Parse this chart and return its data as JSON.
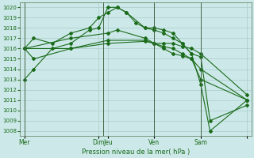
{
  "background_color": "#cce8e8",
  "grid_color": "#aacccc",
  "line_color": "#1a6b1a",
  "title": "Pression niveau de la mer( hPa )",
  "ylim": [
    1007.5,
    1020.5
  ],
  "yticks": [
    1008,
    1009,
    1010,
    1011,
    1012,
    1013,
    1014,
    1015,
    1016,
    1017,
    1018,
    1019,
    1020
  ],
  "x_tick_pos": [
    0,
    8,
    9,
    14,
    19,
    24
  ],
  "x_tick_labels": [
    "Mer",
    "Dim",
    "Jeu",
    "Ven",
    "Sam",
    ""
  ],
  "vline_pos": [
    0,
    8.5,
    14,
    19
  ],
  "series": [
    {
      "x": [
        0,
        1,
        3,
        5,
        7,
        8,
        9,
        10,
        11,
        12,
        13,
        14,
        15,
        16,
        17,
        18,
        19,
        20,
        24
      ],
      "y": [
        1013.0,
        1014.0,
        1016.0,
        1016.5,
        1017.8,
        1018.0,
        1020.0,
        1020.0,
        1019.5,
        1018.5,
        1018.0,
        1018.0,
        1017.8,
        1017.5,
        1016.5,
        1015.5,
        1012.5,
        1008.0,
        1011.0
      ],
      "markers": [
        0,
        1,
        3,
        5,
        7,
        8,
        9,
        10,
        11,
        12,
        13,
        14,
        15,
        16,
        17,
        18,
        19,
        20,
        24
      ]
    },
    {
      "x": [
        0,
        1,
        3,
        5,
        7,
        8,
        9,
        10,
        11,
        13,
        14,
        15,
        16,
        17,
        18,
        19,
        20,
        24
      ],
      "y": [
        1016.0,
        1017.0,
        1016.5,
        1017.5,
        1018.0,
        1019.0,
        1019.5,
        1020.0,
        1019.5,
        1018.0,
        1017.8,
        1017.5,
        1017.0,
        1016.5,
        1015.5,
        1015.2,
        1009.0,
        1010.5
      ],
      "markers": [
        0,
        1,
        3,
        5,
        7,
        8,
        9,
        10,
        11,
        13,
        14,
        15,
        16,
        17,
        18,
        19,
        20,
        24
      ]
    },
    {
      "x": [
        0,
        5,
        9,
        13,
        14,
        15,
        16,
        17,
        18,
        19,
        24
      ],
      "y": [
        1016.0,
        1016.0,
        1016.5,
        1016.7,
        1016.5,
        1016.5,
        1016.5,
        1016.2,
        1016.0,
        1015.5,
        1011.5
      ],
      "markers": [
        0,
        5,
        9,
        13,
        14,
        15,
        16,
        17,
        18,
        19,
        24
      ]
    },
    {
      "x": [
        0,
        5,
        9,
        10,
        13,
        14,
        15,
        16,
        17,
        18,
        19,
        24
      ],
      "y": [
        1016.0,
        1017.0,
        1017.5,
        1017.8,
        1017.0,
        1016.5,
        1016.0,
        1015.5,
        1015.3,
        1015.0,
        1014.0,
        1011.0
      ],
      "markers": [
        0,
        5,
        9,
        10,
        13,
        14,
        15,
        16,
        17,
        18,
        19,
        24
      ]
    },
    {
      "x": [
        0,
        1,
        5,
        9,
        13,
        14,
        15,
        16,
        17,
        18,
        19,
        24
      ],
      "y": [
        1016.0,
        1015.0,
        1016.0,
        1016.8,
        1016.8,
        1016.5,
        1016.2,
        1016.0,
        1015.5,
        1015.0,
        1013.0,
        1011.0
      ],
      "markers": [
        0,
        1,
        5,
        9,
        13,
        14,
        15,
        16,
        17,
        18,
        19,
        24
      ]
    }
  ]
}
